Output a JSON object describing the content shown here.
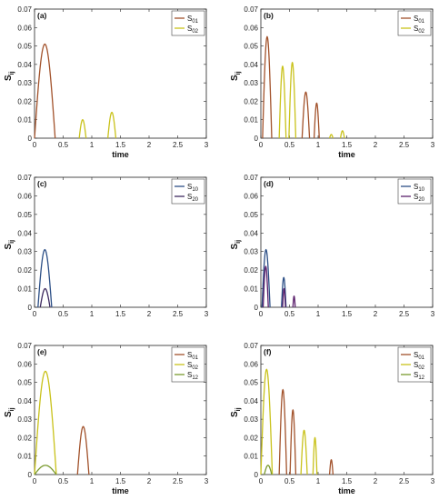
{
  "chart_data": [
    {
      "type": "line",
      "panel_label": "(a)",
      "xlabel": "time",
      "ylabel": "S",
      "ylabel_sub": "ij",
      "xlim": [
        0,
        3
      ],
      "ylim": [
        0,
        0.07
      ],
      "xticks": [
        "0",
        "0.5",
        "1",
        "1.5",
        "2",
        "2.5",
        "3"
      ],
      "yticks": [
        "0",
        "0.01",
        "0.02",
        "0.03",
        "0.04",
        "0.05",
        "0.06",
        "0.07"
      ],
      "legend_position": "top-right",
      "series": [
        {
          "name": "S",
          "sub": "01",
          "color": "#a2522b",
          "pulses": [
            {
              "start": 0.0,
              "end": 0.36,
              "peak": 0.051
            }
          ]
        },
        {
          "name": "S",
          "sub": "02",
          "color": "#c9c21b",
          "pulses": [
            {
              "start": 0.78,
              "end": 0.9,
              "peak": 0.01
            },
            {
              "start": 1.28,
              "end": 1.42,
              "peak": 0.014
            }
          ]
        }
      ]
    },
    {
      "type": "line",
      "panel_label": "(b)",
      "xlabel": "time",
      "ylabel": "S",
      "ylabel_sub": "ij",
      "xlim": [
        0,
        3
      ],
      "ylim": [
        0,
        0.07
      ],
      "xticks": [
        "0",
        "0.5",
        "1",
        "1.5",
        "2",
        "2.5",
        "3"
      ],
      "yticks": [
        "0",
        "0.01",
        "0.02",
        "0.03",
        "0.04",
        "0.05",
        "0.06",
        "0.07"
      ],
      "legend_position": "top-right",
      "series": [
        {
          "name": "S",
          "sub": "01",
          "color": "#a2522b",
          "pulses": [
            {
              "start": 0.03,
              "end": 0.19,
              "peak": 0.055
            },
            {
              "start": 0.72,
              "end": 0.85,
              "peak": 0.025
            },
            {
              "start": 0.93,
              "end": 1.02,
              "peak": 0.019
            }
          ]
        },
        {
          "name": "S",
          "sub": "02",
          "color": "#c9c21b",
          "pulses": [
            {
              "start": 0.32,
              "end": 0.44,
              "peak": 0.039
            },
            {
              "start": 0.49,
              "end": 0.61,
              "peak": 0.041
            },
            {
              "start": 1.2,
              "end": 1.26,
              "peak": 0.002
            },
            {
              "start": 1.39,
              "end": 1.46,
              "peak": 0.004
            }
          ]
        }
      ]
    },
    {
      "type": "line",
      "panel_label": "(c)",
      "xlabel": "",
      "ylabel": "S",
      "ylabel_sub": "ij",
      "xlim": [
        0,
        3
      ],
      "ylim": [
        0,
        0.07
      ],
      "xticks": [
        "0",
        "0.5",
        "1",
        "1.5",
        "2",
        "2.5",
        "3"
      ],
      "yticks": [
        "0",
        "0.01",
        "0.02",
        "0.03",
        "0.04",
        "0.05",
        "0.06",
        "0.07"
      ],
      "legend_position": "top-right",
      "series": [
        {
          "name": "S",
          "sub": "10",
          "color": "#2c4f86",
          "pulses": [
            {
              "start": 0.06,
              "end": 0.3,
              "peak": 0.031
            }
          ]
        },
        {
          "name": "S",
          "sub": "20",
          "color": "#3d2a5f",
          "pulses": [
            {
              "start": 0.1,
              "end": 0.27,
              "peak": 0.01
            }
          ]
        }
      ]
    },
    {
      "type": "line",
      "panel_label": "(d)",
      "xlabel": "",
      "ylabel": "S",
      "ylabel_sub": "ij",
      "xlim": [
        0,
        3
      ],
      "ylim": [
        0,
        0.07
      ],
      "xticks": [
        "0",
        "0.5",
        "1",
        "1.5",
        "2",
        "2.5",
        "3"
      ],
      "yticks": [
        "0",
        "0.01",
        "0.02",
        "0.03",
        "0.04",
        "0.05",
        "0.06",
        "0.07"
      ],
      "legend_position": "top-right",
      "series": [
        {
          "name": "S",
          "sub": "10",
          "color": "#2c4f86",
          "pulses": [
            {
              "start": 0.02,
              "end": 0.16,
              "peak": 0.031
            },
            {
              "start": 0.36,
              "end": 0.44,
              "peak": 0.016
            }
          ]
        },
        {
          "name": "S",
          "sub": "20",
          "color": "#5a1f6b",
          "pulses": [
            {
              "start": 0.04,
              "end": 0.13,
              "peak": 0.022
            },
            {
              "start": 0.38,
              "end": 0.43,
              "peak": 0.01
            },
            {
              "start": 0.56,
              "end": 0.6,
              "peak": 0.006
            }
          ]
        }
      ]
    },
    {
      "type": "line",
      "panel_label": "(e)",
      "xlabel": "time",
      "ylabel": "S",
      "ylabel_sub": "ij",
      "xlim": [
        0,
        3
      ],
      "ylim": [
        0,
        0.07
      ],
      "xticks": [
        "0",
        "0.5",
        "1",
        "1.5",
        "2",
        "2.5",
        "3"
      ],
      "yticks": [
        "0",
        "0.01",
        "0.02",
        "0.03",
        "0.04",
        "0.05",
        "0.06",
        "0.07"
      ],
      "legend_position": "top-right",
      "series": [
        {
          "name": "S",
          "sub": "01",
          "color": "#a2522b",
          "pulses": [
            {
              "start": 0.75,
              "end": 0.95,
              "peak": 0.026
            }
          ]
        },
        {
          "name": "S",
          "sub": "02",
          "color": "#c9c21b",
          "pulses": [
            {
              "start": 0.0,
              "end": 0.38,
              "peak": 0.056
            }
          ]
        },
        {
          "name": "S",
          "sub": "12",
          "color": "#7a9a2e",
          "pulses": [
            {
              "start": 0.0,
              "end": 0.38,
              "peak": 0.005
            }
          ]
        }
      ]
    },
    {
      "type": "line",
      "panel_label": "(f)",
      "xlabel": "time",
      "ylabel": "S",
      "ylabel_sub": "ij",
      "xlim": [
        0,
        3
      ],
      "ylim": [
        0,
        0.07
      ],
      "xticks": [
        "0",
        "0.5",
        "1",
        "1.5",
        "2",
        "2.5",
        "3"
      ],
      "yticks": [
        "0",
        "0.01",
        "0.02",
        "0.03",
        "0.04",
        "0.05",
        "0.06",
        "0.07"
      ],
      "legend_position": "top-right",
      "series": [
        {
          "name": "S",
          "sub": "01",
          "color": "#a2522b",
          "pulses": [
            {
              "start": 0.32,
              "end": 0.45,
              "peak": 0.046
            },
            {
              "start": 0.51,
              "end": 0.61,
              "peak": 0.035
            },
            {
              "start": 1.2,
              "end": 1.26,
              "peak": 0.008
            }
          ]
        },
        {
          "name": "S",
          "sub": "02",
          "color": "#c9c21b",
          "pulses": [
            {
              "start": 0.0,
              "end": 0.2,
              "peak": 0.057
            },
            {
              "start": 0.7,
              "end": 0.81,
              "peak": 0.024
            },
            {
              "start": 0.91,
              "end": 0.98,
              "peak": 0.02
            }
          ]
        },
        {
          "name": "S",
          "sub": "12",
          "color": "#7a9a2e",
          "pulses": [
            {
              "start": 0.06,
              "end": 0.19,
              "peak": 0.005
            }
          ]
        }
      ]
    }
  ]
}
